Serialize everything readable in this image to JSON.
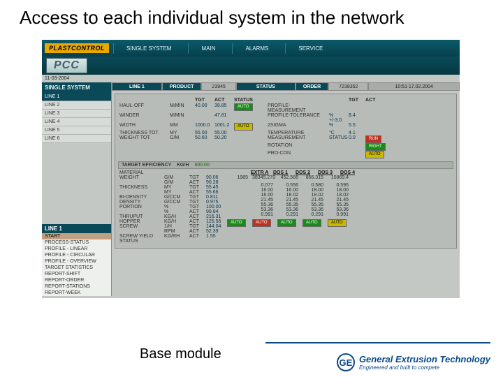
{
  "slide": {
    "title": "Access to each individual system in the network",
    "caption": "Base module",
    "logo_name": "General Extrusion Technology",
    "logo_sub": "Engineered and built to compete",
    "logo_initials": "GE"
  },
  "app": {
    "brand": "PLASTCONTROL",
    "nav": {
      "single": "SINGLE SYSTEM",
      "main": "MAIN",
      "alarms": "ALARMS",
      "service": "SERVICE"
    },
    "pcc": "PCC",
    "date_small": "11-03-2004",
    "statusbar": {
      "line_lbl": "LINE 1",
      "product_lbl": "PRODUCT",
      "product_val": "23945",
      "status_lbl": "STATUS",
      "order_lbl": "ORDER",
      "order_val": "7238352",
      "time": "10:51  17.02.2004"
    },
    "sidebar": {
      "hdr": "SINGLE SYSTEM",
      "sel": "LINE 1",
      "items": [
        "LINE 2",
        "LINE 3",
        "LINE 4",
        "LINE 5",
        "LINE 6"
      ],
      "hdr2": "LINE 1",
      "box2_sel": "START",
      "box2": [
        "PROCESS-STATUS",
        "PROFILE - LINEAR",
        "PROFILE - CIRCULAR",
        "PROFILE - OVERVIEW",
        "TARGET STATISTICS",
        "REPORT-SHIFT",
        "REPORT-ORDER",
        "REPORT-STATIONS",
        "REPORT-WEEK"
      ]
    },
    "top_table": {
      "cols": [
        "",
        "",
        "TGT",
        "ACT",
        "STATUS",
        "",
        "",
        "",
        "TGT",
        "ACT"
      ],
      "rows": [
        {
          "label": "HAUL-OFF",
          "unit": "M/MIN",
          "tgt": "40.00",
          "act": "39.85",
          "badge": "AUTO",
          "bcls": "bg-grn",
          "rlabel": "PROFILE-MEASUREMENT",
          "rtgt": "",
          "ract": ""
        },
        {
          "label": "WINDER",
          "unit": "M/MIN",
          "tgt": "",
          "act": "47.81",
          "badge": "",
          "bcls": "",
          "rlabel": "PROFILE-TOLERANCE",
          "rtgt": "% +/-3.0",
          "ract": "8.4"
        },
        {
          "label": "WIDTH",
          "unit": "MM",
          "tgt": "1000.0",
          "act": "1001.2",
          "badge": "AUTO",
          "bcls": "bg-yel",
          "rlabel": "2SIGMA",
          "rtgt": "%",
          "ract": "5.5"
        },
        {
          "label": "THICKNESS TOT.",
          "unit": "MY",
          "tgt": "55.00",
          "act": "55.00",
          "badge": "",
          "bcls": "",
          "rlabel": "TEMPERATURE",
          "rtgt": "°C",
          "ract": "4.1"
        },
        {
          "label": "WEIGHT TOT.",
          "unit": "G/M",
          "tgt": "50.60",
          "act": "50.20",
          "badge": "",
          "bcls": "",
          "rlabel": "MEASUREMENT",
          "rtgt": "STATUS",
          "ract": "0.0",
          "rbadge": "RUN",
          "rbcls": "bg-red"
        },
        {
          "label": "",
          "unit": "",
          "tgt": "",
          "act": "",
          "badge": "",
          "bcls": "",
          "rlabel": "ROTATION",
          "rtgt": "",
          "ract": "",
          "rbadge": "RIGHT",
          "rbcls": "bg-grn"
        },
        {
          "label": "",
          "unit": "",
          "tgt": "",
          "act": "",
          "badge": "",
          "bcls": "",
          "rlabel": "PRO-CON",
          "rtgt": "",
          "ract": "",
          "rbadge": "AUTO",
          "rbcls": "bg-yel"
        }
      ]
    },
    "target_row": {
      "label": "TARGET EFFICIENCY",
      "unit": "KG/H",
      "val": "500.00"
    },
    "ext_table": {
      "rows": [
        {
          "label": "MATERIAL",
          "unit": "",
          "t": "",
          "v": ""
        },
        {
          "label": "WEIGHT",
          "unit": "G/M",
          "t": "TGT",
          "v": "90.06"
        },
        {
          "label": "",
          "unit": "G/M",
          "t": "ACT",
          "v": "90.28"
        },
        {
          "label": "THICKNESS",
          "unit": "MY",
          "t": "TGT",
          "v": "55.45"
        },
        {
          "label": "",
          "unit": "MY",
          "t": "ACT",
          "v": "55.66"
        },
        {
          "label": "BI-DENSITY",
          "unit": "G/CCM",
          "t": "TGT",
          "v": "0.811"
        },
        {
          "label": "DENSITY",
          "unit": "G/CCM",
          "t": "TGT",
          "v": "0.975"
        },
        {
          "label": "PORTION",
          "unit": "%",
          "t": "TGT",
          "v": "100.00"
        },
        {
          "label": "",
          "unit": "%",
          "t": "ACT",
          "v": "99.84"
        },
        {
          "label": "THRUPUT",
          "unit": "KG/H",
          "t": "ACT",
          "v": "216.31"
        },
        {
          "label": "HOPPER",
          "unit": "KG/H",
          "t": "ACT",
          "v": "125.56"
        },
        {
          "label": "SCREW",
          "unit": "1/H",
          "t": "TGT",
          "v": "144.04"
        },
        {
          "label": "",
          "unit": "RPM",
          "t": "ACT",
          "v": "52.39"
        },
        {
          "label": "SCREW YIELD",
          "unit": "KG/RH",
          "t": "ACT",
          "v": "1.55"
        },
        {
          "label": "STATUS",
          "unit": "",
          "t": "",
          "v": ""
        }
      ]
    },
    "dos": {
      "hdr": [
        "",
        "EXTR A",
        "DOS 1",
        "DOS 2",
        "DOS 3",
        "DOS 4"
      ],
      "line1": [
        "1985",
        "38345.270",
        "452.566",
        "856.315",
        "10869.4"
      ],
      "grid": [
        [
          "0.077",
          "0.556",
          "0.580",
          "0.595"
        ],
        [
          "16.00",
          "16.00",
          "18.00",
          "18.00"
        ],
        [
          "16.00",
          "18.02",
          "18.02",
          "18.02"
        ],
        [
          "21.45",
          "21.45",
          "21.45",
          "21.45"
        ],
        [
          "55.36",
          "55.35",
          "55.35",
          "55.35"
        ],
        [
          "53.36",
          "53.36",
          "53.36",
          "53.36"
        ],
        [
          "0.991",
          "0.291",
          "0.291",
          "0.991"
        ]
      ],
      "foot_badges": [
        "AUTO",
        "AUTO",
        "AUTO",
        "AUTO",
        "AUTO"
      ],
      "foot_cls": [
        "bg-grn",
        "bg-red",
        "bg-grn",
        "bg-grn",
        "bg-yel"
      ]
    }
  },
  "colors": {
    "teal_dark": "#0a4a58",
    "teal": "#06404c",
    "panel": "#b8bcb8",
    "bg": "#c4c8c4",
    "green": "#1a8a1a",
    "yellow": "#c8b800",
    "red": "#c03020",
    "blue": "#0a4a88"
  }
}
